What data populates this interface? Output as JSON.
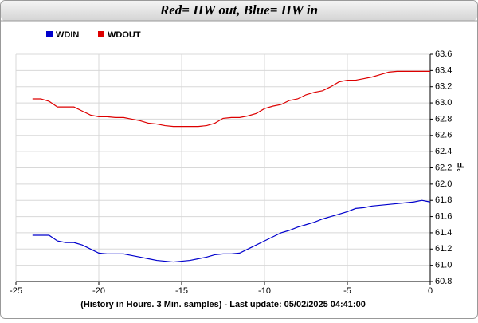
{
  "chart_data": {
    "type": "line",
    "title": "Red= HW out, Blue= HW in",
    "xlabel": "(History in Hours. 3 Min. samples) - Last update: 05/02/2025 04:41:00",
    "ylabel": "°F",
    "x": [
      -24,
      -23.5,
      -23,
      -22.5,
      -22,
      -21.5,
      -21,
      -20.5,
      -20,
      -19.5,
      -19,
      -18.5,
      -18,
      -17.5,
      -17,
      -16.5,
      -16,
      -15.5,
      -15,
      -14.5,
      -14,
      -13.5,
      -13,
      -12.5,
      -12,
      -11.5,
      -11,
      -10.5,
      -10,
      -9.5,
      -9,
      -8.5,
      -8,
      -7.5,
      -7,
      -6.5,
      -6,
      -5.5,
      -5,
      -4.5,
      -4,
      -3.5,
      -3,
      -2.5,
      -2,
      -1.5,
      -1,
      -0.5,
      0
    ],
    "series": [
      {
        "name": "WDIN",
        "color": "#0000cc",
        "values": [
          61.37,
          61.37,
          61.37,
          61.3,
          61.28,
          61.28,
          61.25,
          61.2,
          61.15,
          61.14,
          61.14,
          61.14,
          61.12,
          61.1,
          61.08,
          61.06,
          61.05,
          61.04,
          61.05,
          61.06,
          61.08,
          61.1,
          61.13,
          61.14,
          61.14,
          61.15,
          61.2,
          61.25,
          61.3,
          61.35,
          61.4,
          61.43,
          61.47,
          61.5,
          61.53,
          61.57,
          61.6,
          61.63,
          61.66,
          61.7,
          61.71,
          61.73,
          61.74,
          61.75,
          61.76,
          61.77,
          61.78,
          61.8,
          61.78
        ]
      },
      {
        "name": "WDOUT",
        "color": "#dd0000",
        "values": [
          63.05,
          63.05,
          63.02,
          62.95,
          62.95,
          62.95,
          62.9,
          62.85,
          62.83,
          62.83,
          62.82,
          62.82,
          62.8,
          62.78,
          62.75,
          62.74,
          62.72,
          62.71,
          62.71,
          62.71,
          62.71,
          62.72,
          62.75,
          62.81,
          62.82,
          62.82,
          62.84,
          62.87,
          62.93,
          62.96,
          62.98,
          63.03,
          63.05,
          63.1,
          63.13,
          63.15,
          63.2,
          63.26,
          63.28,
          63.28,
          63.3,
          63.32,
          63.35,
          63.38,
          63.39,
          63.39,
          63.39,
          63.39,
          63.39
        ]
      }
    ],
    "xlim": [
      -25,
      0
    ],
    "xticks": [
      -25,
      -20,
      -15,
      -10,
      -5,
      0
    ],
    "ylim": [
      60.8,
      63.6
    ],
    "yticks": [
      60.8,
      {
        "value": 61,
        "label": "61.0"
      },
      61.2,
      61.4,
      61.6,
      61.8,
      {
        "value": 62,
        "label": "62.0"
      },
      62.2,
      62.4,
      62.6,
      62.8,
      {
        "value": 63,
        "label": "63.0"
      },
      63.2,
      63.4,
      63.6
    ],
    "grid": true
  }
}
